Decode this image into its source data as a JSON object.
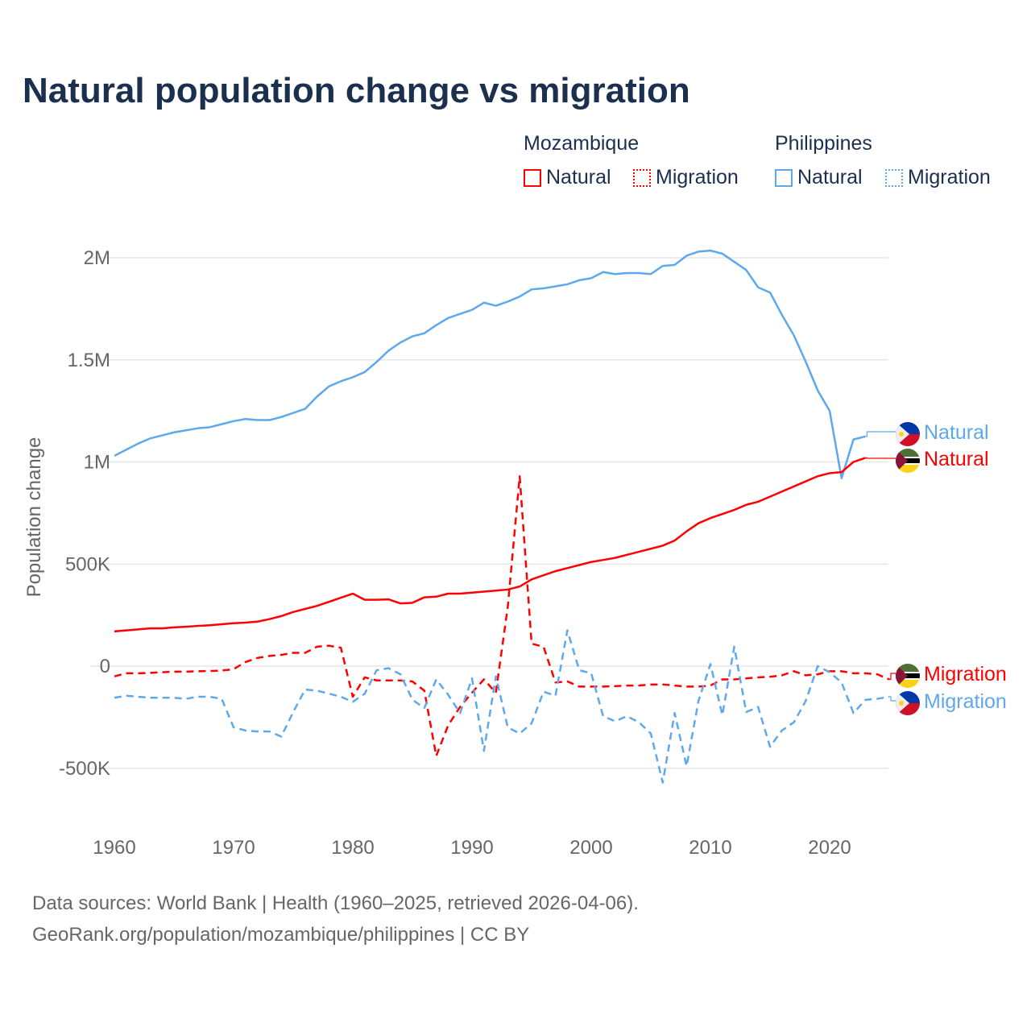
{
  "title": "Natural population change vs migration",
  "legend": {
    "groups": [
      {
        "name": "Mozambique",
        "items": [
          "Natural",
          "Migration"
        ]
      },
      {
        "name": "Philippines",
        "items": [
          "Natural",
          "Migration"
        ]
      }
    ]
  },
  "footer": {
    "line1": "Data sources: World Bank | Health (1960–2025, retrieved 2026-04-06).",
    "line2": "GeoRank.org/population/mozambique/philippines | CC BY"
  },
  "chart_data": {
    "type": "line",
    "title": "Natural population change vs migration",
    "xlabel": "",
    "ylabel": "Population change",
    "xlim": [
      1960,
      2025
    ],
    "ylim": [
      -600000,
      2100000
    ],
    "x_ticks": [
      1960,
      1970,
      1980,
      1990,
      2000,
      2010,
      2020
    ],
    "x_tick_labels": [
      "1960",
      "1970",
      "1980",
      "1990",
      "2000",
      "2010",
      "2020"
    ],
    "y_ticks": [
      -500000,
      0,
      500000,
      1000000,
      1500000,
      2000000
    ],
    "y_tick_labels": [
      "-500K",
      "0",
      "500K",
      "1M",
      "1.5M",
      "2M"
    ],
    "grid": true,
    "colors": {
      "mozambique": "#ff0000",
      "philippines": "#5ea8ec"
    },
    "series": [
      {
        "name": "Philippines Natural",
        "country": "Philippines",
        "label": "Natural",
        "color": "#5ea8ec",
        "dash": false,
        "start_year": 1960,
        "values": [
          1030000,
          1060000,
          1090000,
          1115000,
          1130000,
          1145000,
          1155000,
          1165000,
          1170000,
          1185000,
          1200000,
          1210000,
          1205000,
          1205000,
          1220000,
          1240000,
          1260000,
          1320000,
          1370000,
          1395000,
          1415000,
          1440000,
          1490000,
          1545000,
          1585000,
          1615000,
          1630000,
          1670000,
          1705000,
          1725000,
          1745000,
          1780000,
          1765000,
          1785000,
          1810000,
          1845000,
          1850000,
          1860000,
          1870000,
          1890000,
          1900000,
          1930000,
          1920000,
          1925000,
          1925000,
          1920000,
          1960000,
          1965000,
          2010000,
          2030000,
          2035000,
          2020000,
          1980000,
          1940000,
          1855000,
          1830000,
          1720000,
          1620000,
          1490000,
          1350000,
          1250000,
          920000,
          1110000,
          1125000
        ]
      },
      {
        "name": "Mozambique Natural",
        "country": "Mozambique",
        "label": "Natural",
        "color": "#ff0000",
        "dash": false,
        "start_year": 1960,
        "values": [
          170000,
          175000,
          180000,
          185000,
          185000,
          190000,
          193000,
          197000,
          200000,
          205000,
          210000,
          213000,
          218000,
          230000,
          245000,
          265000,
          280000,
          295000,
          315000,
          335000,
          355000,
          325000,
          325000,
          327000,
          307000,
          310000,
          337000,
          340000,
          355000,
          355000,
          360000,
          365000,
          370000,
          375000,
          390000,
          425000,
          445000,
          465000,
          480000,
          495000,
          510000,
          520000,
          530000,
          545000,
          560000,
          575000,
          590000,
          615000,
          660000,
          700000,
          725000,
          745000,
          765000,
          790000,
          805000,
          830000,
          855000,
          880000,
          905000,
          930000,
          945000,
          950000,
          1000000,
          1020000
        ]
      },
      {
        "name": "Mozambique Migration",
        "country": "Mozambique",
        "label": "Migration",
        "color": "#ff0000",
        "dash": true,
        "start_year": 1960,
        "values": [
          -50000,
          -35000,
          -35000,
          -33000,
          -30000,
          -27000,
          -27000,
          -25000,
          -24000,
          -22000,
          -15000,
          20000,
          40000,
          50000,
          55000,
          65000,
          65000,
          95000,
          100000,
          90000,
          -150000,
          -55000,
          -70000,
          -70000,
          -70000,
          -75000,
          -120000,
          -440000,
          -290000,
          -200000,
          -130000,
          -65000,
          -130000,
          290000,
          930000,
          110000,
          95000,
          -80000,
          -75000,
          -100000,
          -100000,
          -100000,
          -98000,
          -95000,
          -95000,
          -90000,
          -90000,
          -95000,
          -100000,
          -100000,
          -95000,
          -65000,
          -65000,
          -60000,
          -55000,
          -52000,
          -45000,
          -25000,
          -45000,
          -40000,
          -25000,
          -25000,
          -35000,
          -35000,
          -40000,
          -65000
        ]
      },
      {
        "name": "Philippines Migration",
        "country": "Philippines",
        "label": "Migration",
        "color": "#5ea8ec",
        "dash": true,
        "start_year": 1960,
        "values": [
          -155000,
          -145000,
          -150000,
          -155000,
          -155000,
          -155000,
          -160000,
          -150000,
          -150000,
          -160000,
          -300000,
          -315000,
          -320000,
          -320000,
          -345000,
          -225000,
          -115000,
          -120000,
          -135000,
          -150000,
          -175000,
          -135000,
          -20000,
          -10000,
          -40000,
          -165000,
          -205000,
          -65000,
          -140000,
          -230000,
          -60000,
          -415000,
          -50000,
          -300000,
          -330000,
          -280000,
          -125000,
          -145000,
          175000,
          -20000,
          -35000,
          -245000,
          -270000,
          -245000,
          -275000,
          -330000,
          -570000,
          -230000,
          -490000,
          -170000,
          10000,
          -240000,
          95000,
          -225000,
          -200000,
          -395000,
          -315000,
          -275000,
          -170000,
          0,
          -30000,
          -80000,
          -230000,
          -165000,
          -160000,
          -150000
        ]
      }
    ]
  }
}
